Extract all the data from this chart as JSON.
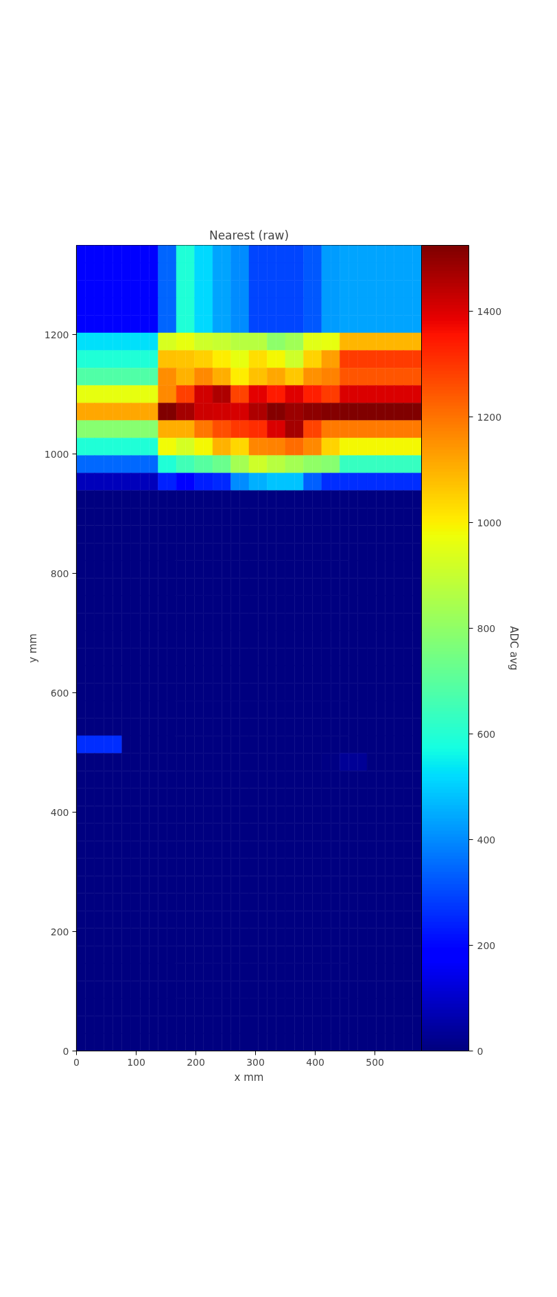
{
  "chart_data": {
    "type": "heatmap",
    "title": "Nearest (raw)",
    "xlabel": "x mm",
    "ylabel": "y mm",
    "clabel": "ADC avg",
    "x": [
      7.6,
      22.8,
      38.0,
      53.2,
      68.5,
      83.7,
      98.9,
      114.1,
      129.3,
      144.5,
      159.7,
      174.9,
      190.1,
      205.3,
      220.6,
      235.8,
      251.0,
      266.2,
      281.4,
      296.6,
      311.8,
      327.0,
      342.2,
      357.5,
      372.7,
      387.9,
      403.1,
      418.3,
      433.5,
      448.7,
      463.9,
      479.1,
      494.3,
      509.6,
      524.8,
      540.0,
      555.2,
      570.4
    ],
    "y": [
      1335.3,
      1306.0,
      1276.6,
      1247.3,
      1217.9,
      1188.6,
      1159.2,
      1129.9,
      1100.5,
      1071.2,
      1041.8,
      1012.5,
      983.2,
      953.8,
      924.5,
      895.1,
      865.8,
      836.4,
      807.1,
      777.7,
      748.4,
      719.0,
      689.7,
      660.3,
      631.0,
      601.6,
      572.3,
      542.9,
      513.6,
      484.2,
      454.9,
      425.5,
      396.2,
      366.8,
      337.5,
      308.2,
      278.8,
      249.5,
      220.1,
      190.8,
      161.4,
      132.1,
      102.7,
      73.4,
      44.0,
      14.7
    ],
    "cells": [
      [
        170,
        170,
        170,
        170,
        170,
        170,
        170,
        170,
        170,
        343,
        343,
        595,
        595,
        514,
        514,
        440,
        440,
        404,
        404,
        297,
        297,
        297,
        297,
        297,
        297,
        323,
        323,
        425,
        425,
        440,
        440,
        440,
        440,
        440,
        440,
        440,
        440,
        440
      ],
      [
        170,
        170,
        170,
        170,
        170,
        170,
        170,
        170,
        170,
        343,
        343,
        595,
        595,
        514,
        514,
        440,
        440,
        404,
        404,
        297,
        297,
        297,
        297,
        297,
        297,
        323,
        323,
        425,
        425,
        440,
        440,
        440,
        440,
        440,
        440,
        440,
        440,
        440
      ],
      [
        170,
        170,
        170,
        170,
        170,
        170,
        170,
        170,
        170,
        343,
        343,
        595,
        595,
        514,
        514,
        440,
        440,
        404,
        404,
        297,
        297,
        297,
        297,
        297,
        297,
        323,
        323,
        425,
        425,
        440,
        440,
        440,
        440,
        440,
        440,
        440,
        440,
        440
      ],
      [
        170,
        170,
        170,
        170,
        170,
        170,
        170,
        170,
        170,
        343,
        343,
        595,
        595,
        514,
        514,
        440,
        440,
        404,
        404,
        297,
        297,
        297,
        297,
        297,
        297,
        323,
        323,
        425,
        425,
        440,
        440,
        440,
        440,
        440,
        440,
        440,
        440,
        440
      ],
      [
        170,
        170,
        170,
        170,
        170,
        170,
        170,
        170,
        170,
        343,
        343,
        595,
        595,
        514,
        514,
        440,
        440,
        404,
        404,
        297,
        297,
        297,
        297,
        297,
        297,
        323,
        323,
        425,
        425,
        440,
        440,
        440,
        440,
        440,
        440,
        440,
        440,
        440
      ],
      [
        525,
        525,
        525,
        525,
        525,
        525,
        525,
        525,
        525,
        930,
        930,
        963,
        963,
        912,
        912,
        905,
        905,
        874,
        874,
        874,
        874,
        793,
        793,
        831,
        831,
        950,
        950,
        963,
        963,
        1092,
        1092,
        1092,
        1092,
        1092,
        1092,
        1092,
        1092,
        1092
      ],
      [
        595,
        595,
        595,
        595,
        595,
        595,
        595,
        595,
        595,
        1078,
        1078,
        1071,
        1071,
        1050,
        1050,
        1005,
        1005,
        963,
        963,
        1025,
        1025,
        988,
        988,
        912,
        912,
        1046,
        1046,
        1128,
        1128,
        1289,
        1289,
        1289,
        1289,
        1289,
        1289,
        1289,
        1289,
        1289
      ],
      [
        680,
        680,
        680,
        680,
        680,
        680,
        680,
        680,
        680,
        1157,
        1157,
        1098,
        1098,
        1162,
        1162,
        1104,
        1104,
        1005,
        1005,
        1078,
        1078,
        1117,
        1117,
        1066,
        1066,
        1150,
        1150,
        1174,
        1174,
        1246,
        1246,
        1246,
        1246,
        1246,
        1246,
        1246,
        1246,
        1246
      ],
      [
        963,
        963,
        963,
        963,
        963,
        963,
        963,
        963,
        963,
        1162,
        1162,
        1285,
        1285,
        1414,
        1414,
        1461,
        1461,
        1278,
        1278,
        1388,
        1388,
        1342,
        1342,
        1397,
        1397,
        1336,
        1336,
        1289,
        1289,
        1403,
        1403,
        1403,
        1403,
        1403,
        1403,
        1403,
        1403,
        1403
      ],
      [
        1117,
        1117,
        1117,
        1117,
        1117,
        1117,
        1117,
        1117,
        1117,
        1525,
        1525,
        1472,
        1472,
        1418,
        1418,
        1414,
        1414,
        1408,
        1408,
        1461,
        1461,
        1519,
        1519,
        1488,
        1488,
        1505,
        1505,
        1515,
        1515,
        1525,
        1525,
        1525,
        1525,
        1525,
        1525,
        1525,
        1525,
        1525
      ],
      [
        785,
        785,
        785,
        785,
        785,
        785,
        785,
        785,
        785,
        1104,
        1104,
        1104,
        1104,
        1194,
        1194,
        1260,
        1260,
        1296,
        1296,
        1316,
        1316,
        1403,
        1403,
        1472,
        1472,
        1278,
        1278,
        1188,
        1188,
        1188,
        1188,
        1188,
        1188,
        1188,
        1188,
        1188,
        1188,
        1188
      ],
      [
        595,
        595,
        595,
        595,
        595,
        595,
        595,
        595,
        595,
        978,
        978,
        926,
        926,
        988,
        988,
        1098,
        1098,
        1041,
        1041,
        1168,
        1168,
        1174,
        1174,
        1214,
        1214,
        1162,
        1162,
        1046,
        1046,
        988,
        988,
        988,
        988,
        988,
        988,
        988,
        988,
        988
      ],
      [
        346,
        346,
        346,
        346,
        346,
        346,
        346,
        346,
        346,
        595,
        595,
        652,
        652,
        694,
        694,
        727,
        727,
        836,
        836,
        912,
        912,
        874,
        874,
        836,
        836,
        803,
        803,
        785,
        785,
        637,
        637,
        637,
        637,
        637,
        637,
        637,
        637,
        637
      ],
      [
        80,
        80,
        80,
        80,
        80,
        80,
        80,
        80,
        80,
        244,
        244,
        168,
        168,
        238,
        238,
        256,
        256,
        404,
        404,
        458,
        458,
        488,
        488,
        488,
        488,
        335,
        335,
        262,
        262,
        262,
        262,
        262,
        262,
        262,
        262,
        262,
        262,
        262
      ],
      [
        0,
        0,
        0,
        0,
        0,
        0,
        0,
        0,
        0,
        0,
        0,
        0,
        0,
        0,
        0,
        0,
        0,
        0,
        0,
        0,
        0,
        0,
        0,
        0,
        0,
        0,
        0,
        0,
        0,
        0,
        0,
        0,
        0,
        0,
        0,
        0,
        0,
        0
      ],
      [
        0,
        0,
        0,
        0,
        0,
        0,
        0,
        0,
        0,
        0,
        0,
        0,
        0,
        0,
        0,
        0,
        0,
        0,
        0,
        0,
        0,
        0,
        0,
        0,
        0,
        0,
        0,
        0,
        0,
        0,
        0,
        0,
        0,
        0,
        0,
        0,
        0,
        0
      ],
      [
        0,
        0,
        0,
        0,
        0,
        0,
        0,
        0,
        0,
        0,
        0,
        0,
        0,
        0,
        0,
        0,
        0,
        0,
        0,
        0,
        0,
        0,
        0,
        0,
        0,
        0,
        0,
        0,
        0,
        0,
        0,
        0,
        0,
        0,
        0,
        0,
        0,
        0
      ],
      [
        0,
        0,
        0,
        0,
        0,
        0,
        0,
        0,
        0,
        0,
        0,
        0,
        0,
        0,
        0,
        0,
        0,
        0,
        0,
        0,
        0,
        0,
        0,
        0,
        0,
        0,
        0,
        0,
        0,
        0,
        0,
        0,
        0,
        0,
        0,
        0,
        0,
        0
      ],
      [
        0,
        0,
        0,
        0,
        0,
        0,
        0,
        0,
        0,
        0,
        0,
        0,
        0,
        0,
        0,
        0,
        0,
        0,
        0,
        0,
        0,
        0,
        0,
        0,
        0,
        0,
        0,
        0,
        0,
        0,
        0,
        0,
        0,
        0,
        0,
        0,
        0,
        0
      ],
      [
        0,
        0,
        0,
        0,
        0,
        0,
        0,
        0,
        0,
        0,
        0,
        0,
        0,
        0,
        0,
        0,
        0,
        0,
        0,
        0,
        0,
        0,
        0,
        0,
        0,
        0,
        0,
        0,
        0,
        0,
        0,
        0,
        0,
        0,
        0,
        0,
        0,
        0
      ],
      [
        0,
        0,
        0,
        0,
        0,
        0,
        0,
        0,
        0,
        0,
        0,
        0,
        0,
        0,
        0,
        0,
        0,
        0,
        0,
        0,
        0,
        0,
        0,
        0,
        0,
        0,
        0,
        0,
        0,
        0,
        0,
        0,
        0,
        0,
        0,
        0,
        0,
        0
      ],
      [
        0,
        0,
        0,
        0,
        0,
        0,
        0,
        0,
        0,
        0,
        0,
        0,
        0,
        0,
        0,
        0,
        0,
        0,
        0,
        0,
        0,
        0,
        0,
        0,
        0,
        0,
        0,
        0,
        0,
        0,
        0,
        0,
        0,
        0,
        0,
        0,
        0,
        0
      ],
      [
        0,
        0,
        0,
        0,
        0,
        0,
        0,
        0,
        0,
        0,
        0,
        0,
        0,
        0,
        0,
        0,
        0,
        0,
        0,
        0,
        0,
        0,
        0,
        0,
        0,
        0,
        0,
        0,
        0,
        0,
        0,
        0,
        0,
        0,
        0,
        0,
        0,
        0
      ],
      [
        0,
        0,
        0,
        0,
        0,
        0,
        0,
        0,
        0,
        0,
        0,
        0,
        0,
        0,
        0,
        0,
        0,
        0,
        0,
        0,
        0,
        0,
        0,
        0,
        0,
        0,
        0,
        0,
        0,
        0,
        0,
        0,
        0,
        0,
        0,
        0,
        0,
        0
      ],
      [
        0,
        0,
        0,
        0,
        0,
        0,
        0,
        0,
        0,
        0,
        0,
        0,
        0,
        0,
        0,
        0,
        0,
        0,
        0,
        0,
        0,
        0,
        0,
        0,
        0,
        0,
        0,
        0,
        0,
        0,
        0,
        0,
        0,
        0,
        0,
        0,
        0,
        0
      ],
      [
        0,
        0,
        0,
        0,
        0,
        0,
        0,
        0,
        0,
        0,
        0,
        0,
        0,
        0,
        0,
        0,
        0,
        0,
        0,
        0,
        0,
        0,
        0,
        0,
        0,
        0,
        0,
        0,
        0,
        0,
        0,
        0,
        0,
        0,
        0,
        0,
        0,
        0
      ],
      [
        0,
        0,
        0,
        0,
        0,
        0,
        0,
        0,
        0,
        0,
        0,
        0,
        0,
        0,
        0,
        0,
        0,
        0,
        0,
        0,
        0,
        0,
        0,
        0,
        0,
        0,
        0,
        0,
        0,
        0,
        0,
        0,
        0,
        0,
        0,
        0,
        0,
        0
      ],
      [
        0,
        0,
        0,
        0,
        0,
        0,
        0,
        0,
        0,
        0,
        0,
        0,
        0,
        0,
        0,
        0,
        0,
        0,
        0,
        0,
        0,
        0,
        0,
        0,
        0,
        0,
        0,
        0,
        0,
        0,
        0,
        0,
        0,
        0,
        0,
        0,
        0,
        0
      ],
      [
        262,
        262,
        262,
        262,
        262,
        0,
        0,
        0,
        0,
        0,
        0,
        0,
        0,
        0,
        0,
        0,
        0,
        0,
        0,
        0,
        0,
        0,
        0,
        0,
        0,
        0,
        0,
        0,
        0,
        0,
        0,
        0,
        0,
        0,
        0,
        0,
        0,
        0
      ],
      [
        0,
        0,
        0,
        0,
        0,
        0,
        0,
        0,
        0,
        0,
        0,
        0,
        0,
        0,
        0,
        0,
        0,
        0,
        0,
        0,
        0,
        0,
        0,
        0,
        0,
        0,
        0,
        10,
        10,
        34,
        34,
        34,
        0,
        0,
        0,
        0,
        0,
        0
      ],
      [
        0,
        0,
        0,
        0,
        0,
        0,
        0,
        0,
        0,
        0,
        0,
        0,
        0,
        0,
        0,
        0,
        0,
        0,
        0,
        0,
        0,
        0,
        0,
        0,
        0,
        0,
        0,
        0,
        0,
        0,
        0,
        0,
        0,
        0,
        0,
        0,
        0,
        0
      ],
      [
        0,
        0,
        0,
        0,
        0,
        0,
        0,
        0,
        0,
        0,
        0,
        0,
        0,
        0,
        0,
        0,
        0,
        0,
        0,
        0,
        0,
        0,
        0,
        0,
        0,
        0,
        0,
        0,
        0,
        0,
        0,
        0,
        0,
        0,
        0,
        0,
        0,
        0
      ],
      [
        0,
        0,
        0,
        0,
        0,
        0,
        0,
        0,
        0,
        0,
        0,
        0,
        0,
        0,
        0,
        0,
        0,
        0,
        0,
        0,
        0,
        0,
        0,
        0,
        0,
        0,
        0,
        0,
        0,
        0,
        0,
        0,
        0,
        0,
        0,
        0,
        0,
        0
      ],
      [
        0,
        0,
        0,
        0,
        0,
        0,
        0,
        0,
        0,
        0,
        0,
        0,
        0,
        0,
        0,
        0,
        0,
        0,
        0,
        0,
        0,
        0,
        0,
        0,
        0,
        0,
        0,
        0,
        0,
        0,
        0,
        0,
        0,
        0,
        0,
        0,
        0,
        0
      ],
      [
        0,
        0,
        0,
        0,
        0,
        0,
        0,
        0,
        0,
        0,
        0,
        0,
        0,
        0,
        0,
        0,
        0,
        0,
        0,
        0,
        0,
        0,
        0,
        0,
        0,
        0,
        0,
        0,
        0,
        0,
        0,
        0,
        0,
        0,
        0,
        0,
        0,
        0
      ],
      [
        0,
        0,
        0,
        0,
        0,
        0,
        0,
        0,
        0,
        0,
        0,
        0,
        0,
        0,
        0,
        0,
        0,
        0,
        0,
        0,
        0,
        0,
        0,
        0,
        0,
        0,
        0,
        0,
        0,
        0,
        0,
        0,
        0,
        0,
        0,
        0,
        0,
        0
      ],
      [
        0,
        0,
        0,
        0,
        0,
        0,
        0,
        0,
        0,
        0,
        0,
        0,
        0,
        0,
        0,
        0,
        0,
        0,
        0,
        0,
        0,
        0,
        0,
        0,
        0,
        0,
        0,
        0,
        0,
        0,
        0,
        0,
        0,
        0,
        0,
        0,
        0,
        0
      ],
      [
        0,
        0,
        0,
        0,
        0,
        0,
        0,
        0,
        0,
        0,
        0,
        0,
        0,
        0,
        0,
        0,
        0,
        0,
        0,
        0,
        0,
        0,
        0,
        0,
        0,
        0,
        0,
        0,
        0,
        0,
        0,
        0,
        0,
        0,
        0,
        0,
        0,
        0
      ],
      [
        0,
        0,
        0,
        0,
        0,
        0,
        0,
        0,
        0,
        0,
        0,
        0,
        0,
        0,
        0,
        0,
        0,
        0,
        0,
        0,
        0,
        0,
        0,
        0,
        0,
        0,
        0,
        0,
        0,
        0,
        0,
        0,
        0,
        0,
        0,
        0,
        0,
        0
      ],
      [
        0,
        0,
        0,
        0,
        0,
        0,
        0,
        0,
        0,
        0,
        0,
        0,
        0,
        0,
        0,
        0,
        0,
        0,
        0,
        0,
        0,
        0,
        0,
        0,
        0,
        0,
        0,
        0,
        0,
        0,
        0,
        0,
        0,
        0,
        0,
        0,
        0,
        0
      ],
      [
        0,
        0,
        0,
        0,
        0,
        0,
        0,
        0,
        0,
        0,
        0,
        0,
        0,
        0,
        0,
        0,
        0,
        0,
        0,
        0,
        0,
        0,
        0,
        0,
        0,
        0,
        0,
        0,
        0,
        0,
        0,
        0,
        0,
        0,
        0,
        0,
        0,
        0
      ],
      [
        0,
        0,
        0,
        0,
        0,
        0,
        0,
        0,
        0,
        0,
        0,
        0,
        0,
        0,
        0,
        0,
        0,
        0,
        0,
        0,
        0,
        0,
        0,
        0,
        0,
        0,
        0,
        0,
        0,
        0,
        0,
        0,
        0,
        0,
        0,
        0,
        0,
        0
      ],
      [
        0,
        0,
        0,
        0,
        0,
        0,
        0,
        0,
        0,
        0,
        0,
        0,
        0,
        0,
        0,
        0,
        0,
        0,
        0,
        0,
        0,
        0,
        0,
        0,
        0,
        0,
        0,
        0,
        0,
        0,
        0,
        0,
        0,
        0,
        0,
        0,
        0,
        0
      ],
      [
        0,
        0,
        0,
        0,
        0,
        0,
        0,
        0,
        0,
        0,
        0,
        0,
        0,
        0,
        0,
        0,
        0,
        0,
        0,
        0,
        0,
        0,
        0,
        0,
        0,
        0,
        0,
        0,
        0,
        0,
        0,
        0,
        0,
        0,
        0,
        0,
        0,
        0
      ],
      [
        0,
        0,
        0,
        0,
        0,
        0,
        0,
        0,
        0,
        0,
        0,
        0,
        0,
        0,
        0,
        0,
        0,
        0,
        0,
        0,
        0,
        0,
        0,
        0,
        0,
        0,
        0,
        0,
        0,
        0,
        0,
        0,
        0,
        0,
        0,
        0,
        0,
        0
      ],
      [
        0,
        0,
        0,
        0,
        0,
        0,
        0,
        0,
        0,
        0,
        0,
        0,
        0,
        0,
        0,
        0,
        0,
        0,
        0,
        0,
        0,
        0,
        0,
        0,
        0,
        0,
        0,
        0,
        0,
        0,
        0,
        0,
        0,
        0,
        0,
        0,
        0,
        0
      ]
    ],
    "xlim": [
      0,
      578
    ],
    "ylim": [
      0,
      1350
    ],
    "xticks": [
      0,
      100,
      200,
      300,
      400,
      500
    ],
    "yticks": [
      0,
      200,
      400,
      600,
      800,
      1000,
      1200
    ],
    "clim": [
      0,
      1525
    ],
    "cticks": [
      0,
      200,
      400,
      600,
      800,
      1000,
      1200,
      1400
    ],
    "grid": false
  }
}
